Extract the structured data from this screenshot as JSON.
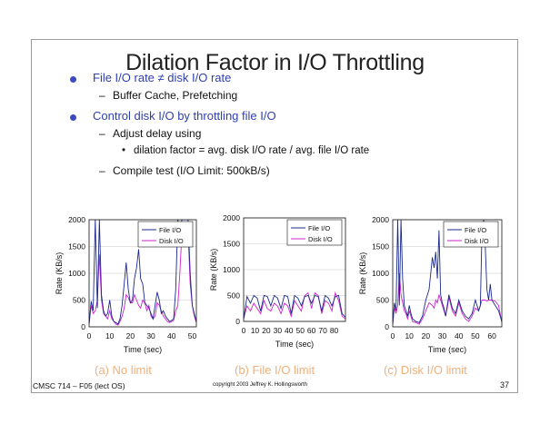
{
  "slide": {
    "title": "Dilation Factor in I/O Throttling",
    "bullets": [
      {
        "text": "File I/O rate ≠ disk I/O rate",
        "sub": [
          "Buffer Cache, Prefetching"
        ]
      },
      {
        "text": "Control disk I/O by throttling file I/O",
        "sub": [
          "Adjust delay using",
          "Compile test (I/O Limit: 500kB/s)"
        ],
        "subsub": "dilation factor = avg. disk I/O rate / avg. file I/O rate"
      }
    ],
    "dash": "–",
    "bullet_dot": "•",
    "footer_left": "CMSC 714 – F05 (lect OS)",
    "footer_center": "copyright 2003 Jeffrey K. Hollingsworth",
    "page_number": "37"
  },
  "chart_data": [
    {
      "type": "line",
      "caption": "(a) No limit",
      "xlabel": "Time (sec)",
      "ylabel": "Rate (KB/s)",
      "xlim": [
        0,
        52
      ],
      "ylim": [
        0,
        2000
      ],
      "xticks": [
        0,
        10,
        20,
        30,
        40,
        50
      ],
      "yticks": [
        0,
        500,
        1000,
        1500,
        2000
      ],
      "legend": "top-right",
      "series": [
        {
          "name": "File I/O",
          "color": "#1a2a8c",
          "x": [
            0,
            1,
            2,
            3,
            4,
            5,
            6,
            7,
            8,
            9,
            10,
            11,
            12,
            13,
            14,
            15,
            16,
            17,
            18,
            19,
            20,
            21,
            22,
            23,
            24,
            25,
            26,
            27,
            28,
            29,
            30,
            31,
            32,
            33,
            34,
            35,
            36,
            37,
            38,
            39,
            40,
            41,
            42,
            43,
            44,
            45,
            46,
            47,
            48,
            49,
            50,
            51,
            52
          ],
          "y": [
            50,
            480,
            300,
            2000,
            350,
            2000,
            600,
            300,
            200,
            250,
            500,
            200,
            100,
            80,
            50,
            150,
            400,
            800,
            1200,
            700,
            450,
            500,
            900,
            1100,
            1450,
            900,
            800,
            450,
            400,
            350,
            250,
            150,
            400,
            650,
            500,
            250,
            300,
            200,
            150,
            100,
            120,
            150,
            700,
            2000,
            1800,
            2000,
            2000,
            2000,
            2000,
            1000,
            400,
            250,
            100
          ]
        },
        {
          "name": "Disk I/O",
          "color": "#cc22cc",
          "x": [
            0,
            1,
            2,
            3,
            4,
            5,
            6,
            7,
            8,
            9,
            10,
            11,
            12,
            13,
            14,
            15,
            16,
            17,
            18,
            19,
            20,
            21,
            22,
            23,
            24,
            25,
            26,
            27,
            28,
            29,
            30,
            31,
            32,
            33,
            34,
            35,
            36,
            37,
            38,
            39,
            40,
            41,
            42,
            43,
            44,
            45,
            46,
            47,
            48,
            49,
            50,
            51,
            52
          ],
          "y": [
            50,
            400,
            250,
            300,
            500,
            1350,
            500,
            250,
            200,
            150,
            300,
            150,
            100,
            50,
            30,
            100,
            200,
            350,
            600,
            550,
            450,
            450,
            600,
            500,
            400,
            350,
            500,
            450,
            300,
            400,
            200,
            150,
            200,
            450,
            400,
            300,
            200,
            150,
            100,
            80,
            100,
            120,
            300,
            400,
            1000,
            1750,
            1750,
            1750,
            1750,
            800,
            400,
            200,
            80
          ]
        }
      ]
    },
    {
      "type": "line",
      "caption": "(b) File I/O limit",
      "xlabel": "Time (sec)",
      "ylabel": "Rate (KB/s)",
      "xlim": [
        0,
        90
      ],
      "ylim": [
        0,
        2000
      ],
      "xticks": [
        0,
        10,
        20,
        30,
        40,
        50,
        60,
        70,
        80
      ],
      "yticks": [
        0,
        500,
        1000,
        1500,
        2000
      ],
      "legend": "top-right",
      "series": [
        {
          "name": "File I/O",
          "color": "#1a2a8c",
          "x": [
            0,
            3,
            6,
            9,
            12,
            15,
            18,
            21,
            24,
            27,
            30,
            33,
            36,
            39,
            42,
            45,
            48,
            51,
            54,
            57,
            60,
            63,
            66,
            69,
            72,
            75,
            78,
            81,
            84,
            87,
            90
          ],
          "y": [
            50,
            480,
            350,
            500,
            450,
            200,
            500,
            480,
            300,
            500,
            450,
            250,
            500,
            480,
            150,
            500,
            450,
            300,
            480,
            500,
            350,
            500,
            480,
            200,
            500,
            450,
            300,
            480,
            500,
            150,
            80
          ]
        },
        {
          "name": "Disk I/O",
          "color": "#cc22cc",
          "x": [
            0,
            3,
            6,
            9,
            12,
            15,
            18,
            21,
            24,
            27,
            30,
            33,
            36,
            39,
            42,
            45,
            48,
            51,
            54,
            57,
            60,
            63,
            66,
            69,
            72,
            75,
            78,
            81,
            84,
            87,
            90
          ],
          "y": [
            50,
            300,
            200,
            350,
            250,
            150,
            400,
            250,
            200,
            350,
            300,
            150,
            350,
            300,
            100,
            400,
            300,
            200,
            500,
            550,
            250,
            550,
            500,
            150,
            400,
            350,
            200,
            550,
            400,
            100,
            50
          ]
        }
      ]
    },
    {
      "type": "line",
      "caption": "(c) Disk I/O limit",
      "xlabel": "Time (sec)",
      "ylabel": "Rate (KB/s)",
      "xlim": [
        0,
        66
      ],
      "ylim": [
        0,
        2000
      ],
      "xticks": [
        0,
        10,
        20,
        30,
        40,
        50,
        60
      ],
      "yticks": [
        0,
        500,
        1000,
        1500,
        2000
      ],
      "legend": "top-right",
      "series": [
        {
          "name": "File I/O",
          "color": "#1a2a8c",
          "x": [
            0,
            1,
            2,
            3,
            4,
            5,
            6,
            7,
            8,
            9,
            10,
            11,
            12,
            14,
            16,
            18,
            20,
            22,
            24,
            25,
            26,
            27,
            28,
            29,
            30,
            31,
            32,
            33,
            34,
            36,
            38,
            40,
            42,
            44,
            46,
            48,
            50,
            52,
            53,
            54,
            55,
            56,
            57,
            58,
            59,
            60,
            62,
            64,
            66
          ],
          "y": [
            50,
            450,
            300,
            2000,
            400,
            2000,
            900,
            400,
            300,
            200,
            400,
            250,
            150,
            100,
            80,
            200,
            500,
            700,
            1300,
            1100,
            1400,
            900,
            1800,
            600,
            450,
            350,
            200,
            400,
            600,
            350,
            250,
            500,
            300,
            200,
            150,
            250,
            500,
            300,
            400,
            1800,
            2000,
            1500,
            700,
            500,
            800,
            500,
            400,
            300,
            100
          ]
        },
        {
          "name": "Disk I/O",
          "color": "#cc22cc",
          "x": [
            0,
            1,
            2,
            3,
            4,
            5,
            6,
            7,
            8,
            9,
            10,
            11,
            12,
            14,
            16,
            18,
            20,
            22,
            24,
            25,
            26,
            27,
            28,
            29,
            30,
            31,
            32,
            33,
            34,
            36,
            38,
            40,
            42,
            44,
            46,
            48,
            50,
            52,
            53,
            54,
            55,
            56,
            57,
            58,
            59,
            60,
            62,
            64,
            66
          ],
          "y": [
            50,
            350,
            250,
            400,
            1000,
            600,
            450,
            300,
            250,
            150,
            300,
            200,
            100,
            80,
            50,
            150,
            300,
            450,
            400,
            350,
            500,
            450,
            600,
            500,
            400,
            300,
            200,
            350,
            550,
            300,
            200,
            450,
            250,
            150,
            100,
            200,
            350,
            300,
            400,
            500,
            500,
            500,
            480,
            500,
            500,
            500,
            480,
            400,
            80
          ]
        }
      ]
    }
  ]
}
